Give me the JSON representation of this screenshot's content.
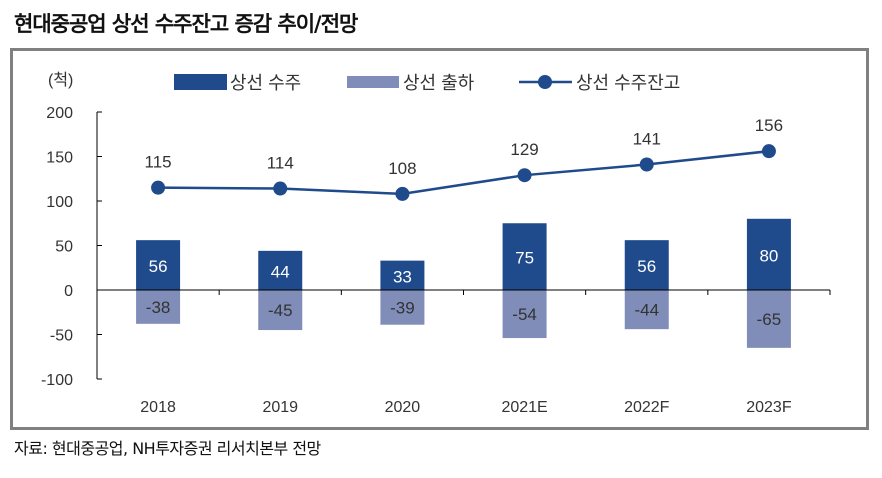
{
  "title": "현대중공업 상선 수주잔고 증감 추이/전망",
  "source": "자료: 현대중공업, NH투자증권 리서치본부 전망",
  "colors": {
    "orders": "#1F4A8C",
    "deliveries": "#7F8DB8",
    "backlog": "#1F4A8C"
  },
  "chart_data": {
    "type": "bar+line",
    "unit_label": "(척)",
    "categories": [
      "2018",
      "2019",
      "2020",
      "2021E",
      "2022F",
      "2023F"
    ],
    "ylim": [
      -100,
      200
    ],
    "yticks": [
      -100,
      -50,
      0,
      50,
      100,
      150,
      200
    ],
    "ytick_labels": [
      "-100",
      "-50",
      "0",
      "50",
      "100",
      "150",
      "200"
    ],
    "grid": false,
    "legend_position": "top",
    "series": [
      {
        "name": "상선 수주",
        "type": "bar",
        "values": [
          56,
          44,
          33,
          75,
          56,
          80
        ]
      },
      {
        "name": "상선 출하",
        "type": "bar",
        "values": [
          -38,
          -45,
          -39,
          -54,
          -44,
          -65
        ]
      },
      {
        "name": "상선 수주잔고",
        "type": "line",
        "values": [
          115,
          114,
          108,
          129,
          141,
          156
        ]
      }
    ]
  }
}
